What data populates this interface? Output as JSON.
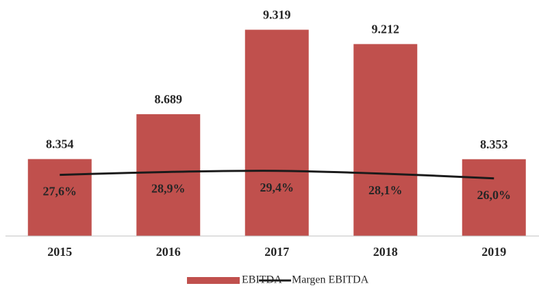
{
  "chart_data": {
    "type": "bar_line",
    "categories": [
      "2015",
      "2016",
      "2017",
      "2018",
      "2019"
    ],
    "series": [
      {
        "name": "EBITDA",
        "type": "bar",
        "color": "#c0504d",
        "values": [
          8354,
          8689,
          9319,
          9212,
          8353
        ],
        "value_labels": [
          "8.354",
          "8.689",
          "9.319",
          "9.212",
          "8.353"
        ]
      },
      {
        "name": "Margen EBITDA",
        "type": "line",
        "axis": "y2",
        "color": "#1a1a1a",
        "values": [
          27.6,
          28.9,
          29.4,
          28.1,
          26.0
        ],
        "value_labels": [
          "27,6%",
          "28,9%",
          "29,4%",
          "28,1%",
          "26,0%"
        ]
      }
    ],
    "ylim": [
      7780,
      9500
    ],
    "y2lim": [
      0,
      104
    ],
    "legend": "bottom"
  }
}
